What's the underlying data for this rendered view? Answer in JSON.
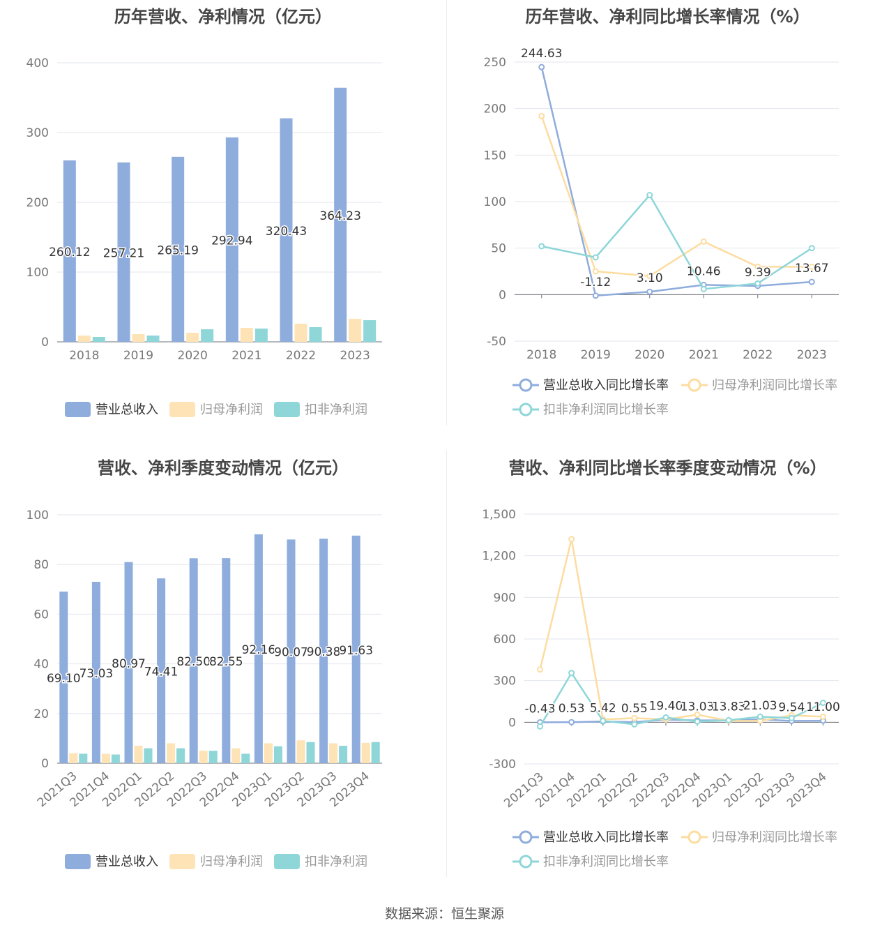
{
  "footer": "数据来源：恒生聚源",
  "colors": {
    "revenue": "#8eacdc",
    "net_profit": "#fde3b5",
    "deducted_profit": "#8ed6d8",
    "revenue_line": "#8eacdc",
    "net_line": "#fddca0",
    "deducted_line": "#8ed6d8"
  },
  "chart_data": [
    {
      "id": "annual_values",
      "type": "bar",
      "title": "历年营收、净利情况（亿元）",
      "categories": [
        "2018",
        "2019",
        "2020",
        "2021",
        "2022",
        "2023"
      ],
      "ylim": [
        0,
        400
      ],
      "yticks": [
        "0",
        "100",
        "200",
        "300",
        "400"
      ],
      "series": [
        {
          "name": "营业总收入",
          "values": [
            260.12,
            257.21,
            265.19,
            292.94,
            320.43,
            364.23
          ],
          "labels": [
            "260.12",
            "257.21",
            "265.19",
            "292.94",
            "320.43",
            "364.23"
          ]
        },
        {
          "name": "归母净利润",
          "values": [
            9,
            11,
            13,
            20,
            26,
            33
          ]
        },
        {
          "name": "扣非净利润",
          "values": [
            7,
            9,
            18,
            19,
            21,
            31
          ]
        }
      ],
      "legend": "bottom",
      "grid": true
    },
    {
      "id": "annual_growth",
      "type": "line",
      "title": "历年营收、净利同比增长率情况（%）",
      "categories": [
        "2018",
        "2019",
        "2020",
        "2021",
        "2022",
        "2023"
      ],
      "ylim": [
        -50,
        250
      ],
      "yticks": [
        "-50",
        "0",
        "50",
        "100",
        "150",
        "200",
        "250"
      ],
      "series": [
        {
          "name": "营业总收入同比增长率",
          "values": [
            244.63,
            -1.12,
            3.1,
            10.46,
            9.39,
            13.67
          ],
          "labels": [
            "244.63",
            "-1.12",
            "3.10",
            "10.46",
            "9.39",
            "13.67"
          ]
        },
        {
          "name": "归母净利润同比增长率",
          "values": [
            192,
            25,
            20,
            57,
            30,
            30
          ]
        },
        {
          "name": "扣非净利润同比增长率",
          "values": [
            52,
            40,
            107,
            6,
            12,
            50
          ]
        }
      ],
      "legend": "bottom",
      "grid": true
    },
    {
      "id": "quarterly_values",
      "type": "bar",
      "title": "营收、净利季度变动情况（亿元）",
      "categories": [
        "2021Q3",
        "2021Q4",
        "2022Q1",
        "2022Q2",
        "2022Q3",
        "2022Q4",
        "2023Q1",
        "2023Q2",
        "2023Q3",
        "2023Q4"
      ],
      "ylim": [
        0,
        100
      ],
      "yticks": [
        "0",
        "20",
        "40",
        "60",
        "80",
        "100"
      ],
      "series": [
        {
          "name": "营业总收入",
          "values": [
            69.1,
            73.03,
            80.97,
            74.41,
            82.5,
            82.55,
            92.16,
            90.07,
            90.38,
            91.63
          ],
          "labels": [
            "69.10",
            "73.03",
            "80.97",
            "74.41",
            "82.50",
            "82.55",
            "92.16",
            "90.07",
            "90.38",
            "91.63"
          ]
        },
        {
          "name": "归母净利润",
          "values": [
            4,
            3.8,
            7,
            8,
            5,
            6,
            8,
            9.2,
            8,
            8.2
          ]
        },
        {
          "name": "扣非净利润",
          "values": [
            3.8,
            3.5,
            6,
            6,
            5,
            3.8,
            6.8,
            8.5,
            7,
            8.5
          ]
        }
      ],
      "legend": "bottom",
      "grid": true
    },
    {
      "id": "quarterly_growth",
      "type": "line",
      "title": "营收、净利同比增长率季度变动情况（%）",
      "categories": [
        "2021Q3",
        "2021Q4",
        "2022Q1",
        "2022Q2",
        "2022Q3",
        "2022Q4",
        "2023Q1",
        "2023Q2",
        "2023Q3",
        "2023Q4"
      ],
      "ylim": [
        -300,
        1500
      ],
      "yticks": [
        "-300",
        "0",
        "300",
        "600",
        "900",
        "1,200",
        "1,500"
      ],
      "series": [
        {
          "name": "营业总收入同比增长率",
          "values": [
            -0.43,
            0.53,
            5.42,
            0.55,
            19.4,
            13.03,
            13.83,
            21.03,
            9.54,
            11.0
          ],
          "labels": [
            "-0.43",
            "0.53",
            "5.42",
            "0.55",
            "19.40",
            "13.03",
            "13.83",
            "21.03",
            "9.54",
            "11.00"
          ]
        },
        {
          "name": "归母净利润同比增长率",
          "values": [
            380,
            1320,
            20,
            30,
            20,
            55,
            10,
            10,
            50,
            40
          ]
        },
        {
          "name": "扣非净利润同比增长率",
          "values": [
            -30,
            355,
            10,
            -15,
            35,
            5,
            15,
            40,
            30,
            140
          ]
        }
      ],
      "legend": "bottom",
      "grid": true
    }
  ]
}
